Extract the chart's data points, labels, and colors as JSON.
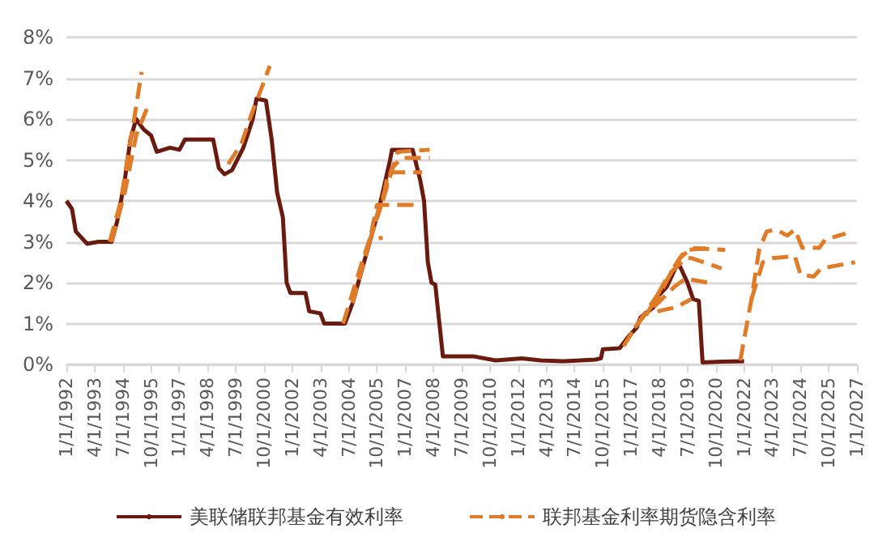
{
  "chart_data": {
    "type": "line",
    "xlim": [
      "1992-01-01",
      "2027-01-01"
    ],
    "xticks": [
      {
        "value": "1992-01-01",
        "label": "1/1/1992"
      },
      {
        "value": "1993-04-01",
        "label": "4/1/1993"
      },
      {
        "value": "1994-07-01",
        "label": "7/1/1994"
      },
      {
        "value": "1995-10-01",
        "label": "10/1/1995"
      },
      {
        "value": "1997-01-01",
        "label": "1/1/1997"
      },
      {
        "value": "1998-04-01",
        "label": "4/1/1998"
      },
      {
        "value": "1999-07-01",
        "label": "7/1/1999"
      },
      {
        "value": "2000-10-01",
        "label": "10/1/2000"
      },
      {
        "value": "2002-01-01",
        "label": "1/1/2002"
      },
      {
        "value": "2003-04-01",
        "label": "4/1/2003"
      },
      {
        "value": "2004-07-01",
        "label": "7/1/2004"
      },
      {
        "value": "2005-10-01",
        "label": "10/1/2005"
      },
      {
        "value": "2007-01-01",
        "label": "1/1/2007"
      },
      {
        "value": "2008-04-01",
        "label": "4/1/2008"
      },
      {
        "value": "2009-07-01",
        "label": "7/1/2009"
      },
      {
        "value": "2010-10-01",
        "label": "10/1/2010"
      },
      {
        "value": "2012-01-01",
        "label": "1/1/2012"
      },
      {
        "value": "2013-04-01",
        "label": "4/1/2013"
      },
      {
        "value": "2014-07-01",
        "label": "7/1/2014"
      },
      {
        "value": "2015-10-01",
        "label": "10/1/2015"
      },
      {
        "value": "2017-01-01",
        "label": "1/1/2017"
      },
      {
        "value": "2018-04-01",
        "label": "4/1/2018"
      },
      {
        "value": "2019-07-01",
        "label": "7/1/2019"
      },
      {
        "value": "2020-10-01",
        "label": "10/1/2020"
      },
      {
        "value": "2022-01-01",
        "label": "1/1/2022"
      },
      {
        "value": "2023-04-01",
        "label": "4/1/2023"
      },
      {
        "value": "2024-07-01",
        "label": "7/1/2024"
      },
      {
        "value": "2025-10-01",
        "label": "10/1/2025"
      },
      {
        "value": "2027-01-01",
        "label": "1/1/2027"
      }
    ],
    "ylim": [
      0,
      8
    ],
    "yticks": [
      {
        "value": 0,
        "label": "0%"
      },
      {
        "value": 1,
        "label": "1%"
      },
      {
        "value": 2,
        "label": "2%"
      },
      {
        "value": 3,
        "label": "3%"
      },
      {
        "value": 4,
        "label": "4%"
      },
      {
        "value": 5,
        "label": "5%"
      },
      {
        "value": 6,
        "label": "6%"
      },
      {
        "value": 7,
        "label": "7%"
      },
      {
        "value": 8,
        "label": "8%"
      }
    ],
    "grid": "y",
    "legend": "bottom",
    "marker": "none",
    "series": [
      {
        "name": "美联储联邦基金有效利率",
        "color": "#6b1a10",
        "line_style": "solid",
        "x": [
          "1992-01",
          "1992-04",
          "1992-06",
          "1992-12",
          "1993-06",
          "1994-01",
          "1994-04",
          "1994-08",
          "1994-11",
          "1995-02",
          "1995-06",
          "1995-10",
          "1996-01",
          "1996-08",
          "1997-01",
          "1997-04",
          "1998-03",
          "1998-07",
          "1998-10",
          "1999-01",
          "1999-05",
          "1999-11",
          "2000-04",
          "2000-06",
          "2000-11",
          "2001-02",
          "2001-05",
          "2001-08",
          "2001-10",
          "2001-12",
          "2002-08",
          "2002-10",
          "2003-04",
          "2003-06",
          "2004-05",
          "2004-09",
          "2005-11",
          "2006-05",
          "2006-06",
          "2007-05",
          "2007-09",
          "2007-11",
          "2008-01",
          "2008-03",
          "2008-05",
          "2008-09",
          "2010-01",
          "2011-01",
          "2012-03",
          "2013-01",
          "2014-01",
          "2015-06",
          "2015-09",
          "2015-10",
          "2016-07",
          "2016-11",
          "2017-04",
          "2017-06",
          "2018-01",
          "2018-04",
          "2018-08",
          "2019-01",
          "2019-03",
          "2019-07",
          "2019-10",
          "2020-01",
          "2020-03",
          "2021-01",
          "2022-01"
        ],
        "values": [
          4.0,
          3.8,
          3.25,
          2.95,
          3.0,
          3.0,
          3.5,
          4.5,
          5.5,
          6.0,
          5.75,
          5.6,
          5.2,
          5.3,
          5.25,
          5.5,
          5.5,
          5.5,
          4.8,
          4.65,
          4.75,
          5.3,
          6.0,
          6.5,
          6.45,
          5.5,
          4.2,
          3.6,
          2.0,
          1.75,
          1.75,
          1.3,
          1.25,
          1.0,
          1.0,
          1.5,
          3.8,
          5.0,
          5.25,
          5.25,
          4.5,
          4.0,
          2.5,
          2.0,
          1.95,
          0.2,
          0.2,
          0.1,
          0.15,
          0.1,
          0.08,
          0.12,
          0.15,
          0.37,
          0.4,
          0.65,
          0.9,
          1.15,
          1.4,
          1.7,
          1.9,
          2.4,
          2.4,
          2.0,
          1.6,
          1.55,
          0.05,
          0.07,
          0.08
        ]
      },
      {
        "name": "联邦基金利率期货隐含利率",
        "color": "#e07b28",
        "line_style": "dashed",
        "x": [
          "1993-12",
          "1994-06",
          "1994-10",
          "1995-01",
          "1995-05"
        ],
        "values": [
          3.0,
          4.0,
          5.2,
          6.0,
          7.15
        ]
      },
      {
        "color": "#e07b28",
        "line_style": "dashed",
        "x": [
          "1994-01",
          "1994-08",
          "1995-02",
          "1995-09"
        ],
        "values": [
          3.0,
          4.2,
          5.6,
          6.4
        ]
      },
      {
        "color": "#e07b28",
        "line_style": "dashed",
        "x": [
          "1999-03",
          "1999-10",
          "2000-04",
          "2000-09",
          "2001-01"
        ],
        "values": [
          4.9,
          5.4,
          6.2,
          6.8,
          7.3
        ]
      },
      {
        "color": "#e07b28",
        "line_style": "dashed",
        "x": [
          "2004-04",
          "2005-02",
          "2005-06",
          "2006-01"
        ],
        "values": [
          1.0,
          2.5,
          3.05,
          3.1
        ]
      },
      {
        "color": "#e07b28",
        "line_style": "dashed",
        "x": [
          "2004-09",
          "2005-06",
          "2005-10",
          "2007-06"
        ],
        "values": [
          1.5,
          3.0,
          3.9,
          3.9
        ]
      },
      {
        "color": "#e07b28",
        "line_style": "dashed",
        "x": [
          "2005-06",
          "2006-01",
          "2006-04",
          "2007-10"
        ],
        "values": [
          3.0,
          4.0,
          4.7,
          4.7
        ]
      },
      {
        "color": "#e07b28",
        "line_style": "dashed",
        "x": [
          "2005-09",
          "2006-06",
          "2006-11",
          "2008-02"
        ],
        "values": [
          3.5,
          4.8,
          5.05,
          5.05
        ]
      },
      {
        "color": "#e07b28",
        "line_style": "dashed",
        "x": [
          "2006-01",
          "2006-09",
          "2008-02"
        ],
        "values": [
          4.0,
          5.2,
          5.25
        ]
      },
      {
        "color": "#e07b28",
        "line_style": "dashed",
        "x": [
          "2016-09",
          "2017-06",
          "2018-06",
          "2019-03",
          "2019-09",
          "2021-03"
        ],
        "values": [
          0.45,
          1.1,
          1.9,
          2.6,
          2.85,
          2.8
        ]
      },
      {
        "color": "#e07b28",
        "line_style": "dashed",
        "x": [
          "2017-03",
          "2018-03",
          "2018-12",
          "2019-06",
          "2020-09"
        ],
        "values": [
          0.9,
          1.6,
          2.4,
          2.8,
          2.85
        ]
      },
      {
        "color": "#e07b28",
        "line_style": "dashed",
        "x": [
          "2017-09",
          "2018-09",
          "2019-06",
          "2019-09",
          "2021-01"
        ],
        "values": [
          1.2,
          2.2,
          2.6,
          2.6,
          2.35
        ]
      },
      {
        "color": "#e07b28",
        "line_style": "dashed",
        "x": [
          "2018-01",
          "2018-12",
          "2019-06",
          "2020-06"
        ],
        "values": [
          1.4,
          1.9,
          2.1,
          2.0
        ]
      },
      {
        "color": "#e07b28",
        "line_style": "dashed",
        "x": [
          "2018-03",
          "2019-01",
          "2019-09"
        ],
        "values": [
          1.3,
          1.4,
          1.6
        ]
      },
      {
        "color": "#e07b28",
        "line_style": "dashed",
        "x": [
          "2021-11",
          "2022-05",
          "2022-09",
          "2023-01",
          "2023-06",
          "2023-12",
          "2024-04",
          "2024-08",
          "2025-05",
          "2025-08",
          "2026-07"
        ],
        "values": [
          0.1,
          1.6,
          2.8,
          3.25,
          3.3,
          3.15,
          3.3,
          2.85,
          2.85,
          3.05,
          3.2
        ]
      },
      {
        "color": "#e07b28",
        "line_style": "dashed",
        "x": [
          "2022-05",
          "2022-11",
          "2023-04",
          "2024-04",
          "2024-07",
          "2025-02",
          "2025-06",
          "2026-12"
        ],
        "values": [
          1.6,
          2.5,
          2.6,
          2.65,
          2.2,
          2.15,
          2.35,
          2.5
        ]
      }
    ]
  }
}
